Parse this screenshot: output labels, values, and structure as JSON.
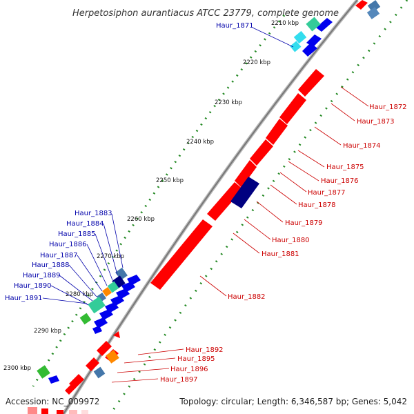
{
  "title": "Herpetosiphon aurantiacus ATCC 23779, complete genome",
  "footer": {
    "accession": "Accession: NC_009972",
    "summary": "Topology: circular; Length: 6,346,587 bp; Genes: 5,042"
  },
  "ruler": [
    "2210 kbp",
    "2220 kbp",
    "2230 kbp",
    "2240 kbp",
    "2250 kbp",
    "2260 kbp",
    "2270 kbp",
    "2280 kbp",
    "2290 kbp",
    "2300 kbp"
  ],
  "genes_forward": [
    "Haur_1871",
    "Haur_1883",
    "Haur_1884",
    "Haur_1885",
    "Haur_1886",
    "Haur_1887",
    "Haur_1888",
    "Haur_1889",
    "Haur_1890",
    "Haur_1891"
  ],
  "genes_reverse": [
    "Haur_1872",
    "Haur_1873",
    "Haur_1874",
    "Haur_1875",
    "Haur_1876",
    "Haur_1877",
    "Haur_1878",
    "Haur_1879",
    "Haur_1880",
    "Haur_1881",
    "Haur_1882",
    "Haur_1892",
    "Haur_1895",
    "Haur_1896",
    "Haur_1897"
  ],
  "colors": {
    "reverse_cds": "#ff0000",
    "forward_cds": "#0000ee",
    "dark_navy": "#000080",
    "teal": "#33cc99",
    "cyan": "#33ddee",
    "orange": "#ff8800",
    "steel": "#4477aa",
    "green": "#33bb33",
    "backbone": "#888888",
    "gc_dots": "#228822"
  }
}
